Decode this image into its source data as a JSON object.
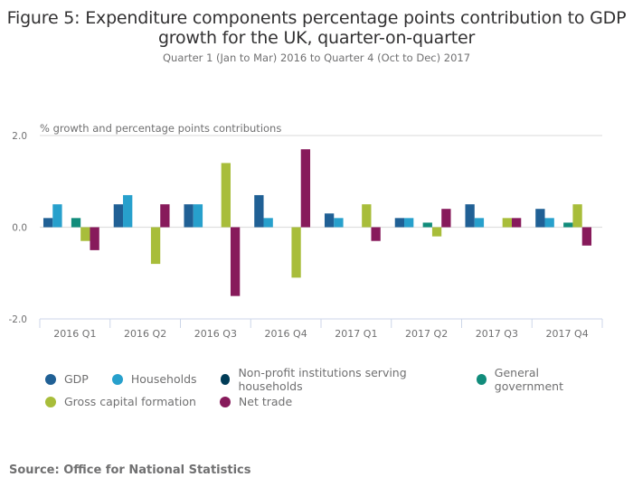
{
  "header": {
    "title_line1": "Figure 5: Expenditure components percentage points contribution to GDP",
    "title_line2": "growth for the UK, quarter-on-quarter",
    "subtitle": "Quarter 1 (Jan to Mar) 2016 to Quarter 4 (Oct to Dec) 2017"
  },
  "source": "Source: Office for National Statistics",
  "chart_data": {
    "type": "bar",
    "title": "Figure 5: Expenditure components percentage points contribution to GDP growth for the UK, quarter-on-quarter",
    "subtitle": "Quarter 1 (Jan to Mar) 2016 to Quarter 4 (Oct to Dec) 2017",
    "xlabel": "",
    "ylabel": "% growth and percentage points contributions",
    "ylim": [
      -2.0,
      2.0
    ],
    "yticks": [
      -2.0,
      0.0,
      2.0
    ],
    "ytick_labels": [
      "-2.0",
      "0.0",
      "2.0"
    ],
    "grid": true,
    "legend_position": "bottom",
    "categories": [
      "2016 Q1",
      "2016 Q2",
      "2016 Q3",
      "2016 Q4",
      "2017 Q1",
      "2017 Q2",
      "2017 Q3",
      "2017 Q4"
    ],
    "series": [
      {
        "name": "GDP",
        "color": "#206095",
        "values": [
          0.2,
          0.5,
          0.5,
          0.7,
          0.3,
          0.2,
          0.5,
          0.4
        ]
      },
      {
        "name": "Households",
        "color": "#27a0cc",
        "values": [
          0.5,
          0.7,
          0.5,
          0.2,
          0.2,
          0.2,
          0.2,
          0.2
        ]
      },
      {
        "name": "Non-profit institutions serving households",
        "color": "#003c57",
        "values": [
          0.0,
          0.0,
          0.0,
          0.0,
          0.0,
          0.0,
          0.0,
          0.0
        ]
      },
      {
        "name": "General government",
        "color": "#118c7b",
        "values": [
          0.2,
          0.0,
          0.0,
          0.0,
          0.0,
          0.1,
          0.0,
          0.1
        ]
      },
      {
        "name": "Gross capital formation",
        "color": "#a8bd3a",
        "values": [
          -0.3,
          -0.8,
          1.4,
          -1.1,
          0.5,
          -0.2,
          0.2,
          0.5
        ]
      },
      {
        "name": "Net trade",
        "color": "#871a5b",
        "values": [
          -0.5,
          0.5,
          -1.5,
          1.7,
          -0.3,
          0.4,
          0.2,
          -0.4
        ]
      }
    ]
  },
  "legend_rows": [
    [
      0,
      1,
      2,
      3
    ],
    [
      4,
      5
    ]
  ]
}
